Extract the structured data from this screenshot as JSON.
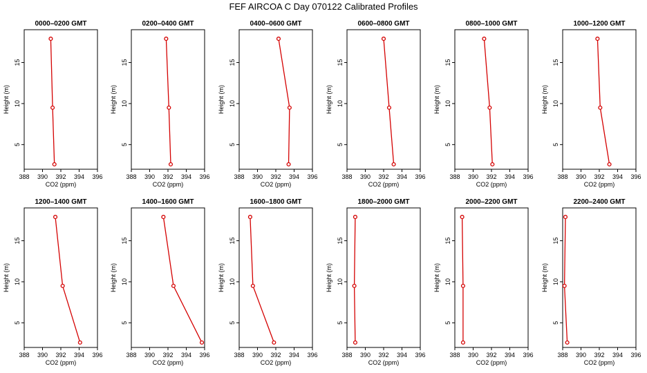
{
  "chart_data": {
    "type": "line",
    "title": "FEF AIRCOA C  Day 070122  Calibrated Profiles",
    "xlabel": "CO2 (ppm)",
    "ylabel": "Height (m)",
    "xlim": [
      388,
      396
    ],
    "ylim": [
      2,
      19
    ],
    "x_ticks": [
      388,
      390,
      392,
      394,
      396
    ],
    "y_ticks": [
      5,
      10,
      15
    ],
    "heights": [
      2.6,
      9.5,
      17.9
    ],
    "line_color": "#d40000",
    "marker_color": "#d40000",
    "panels": [
      {
        "title": "0000–0200 GMT",
        "co2": [
          391.3,
          391.1,
          390.9
        ]
      },
      {
        "title": "0200–0400 GMT",
        "co2": [
          392.3,
          392.1,
          391.8
        ]
      },
      {
        "title": "0400–0600 GMT",
        "co2": [
          393.4,
          393.5,
          392.3
        ]
      },
      {
        "title": "0600–0800 GMT",
        "co2": [
          393.1,
          392.6,
          392.0
        ]
      },
      {
        "title": "0800–1000 GMT",
        "co2": [
          392.1,
          391.8,
          391.2
        ]
      },
      {
        "title": "1000–1200 GMT",
        "co2": [
          393.1,
          392.1,
          391.8
        ]
      },
      {
        "title": "1200–1400 GMT",
        "co2": [
          394.1,
          392.2,
          391.4
        ]
      },
      {
        "title": "1400–1600 GMT",
        "co2": [
          395.7,
          392.6,
          391.5
        ]
      },
      {
        "title": "1600–1800 GMT",
        "co2": [
          391.8,
          389.5,
          389.2
        ]
      },
      {
        "title": "1800–2000 GMT",
        "co2": [
          388.9,
          388.8,
          388.9
        ]
      },
      {
        "title": "2000–2200 GMT",
        "co2": [
          388.9,
          388.9,
          388.8
        ]
      },
      {
        "title": "2200–2400 GMT",
        "co2": [
          388.5,
          388.2,
          388.3
        ]
      }
    ]
  }
}
